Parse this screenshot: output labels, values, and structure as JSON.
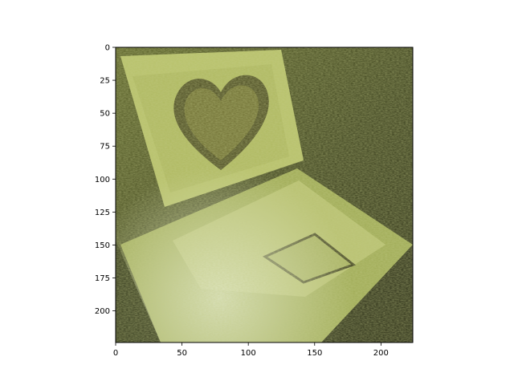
{
  "chart_data": {
    "type": "heatmap",
    "image_content": "stylized textured rendering of an open laptop whose screen shows a heart shape; knitted/woolly texture in olive-green and yellow-green tones",
    "image_size": [
      224,
      224
    ],
    "x_range": [
      0,
      224
    ],
    "y_range": [
      224,
      0
    ],
    "y_inverted": true,
    "x_ticks": [
      0,
      50,
      100,
      150,
      200
    ],
    "y_ticks": [
      0,
      25,
      50,
      75,
      100,
      125,
      150,
      175,
      200
    ],
    "x_tick_labels": [
      "0",
      "50",
      "100",
      "150",
      "200"
    ],
    "y_tick_labels": [
      "0",
      "25",
      "50",
      "75",
      "100",
      "125",
      "150",
      "175",
      "200"
    ],
    "title": "",
    "xlabel": "",
    "ylabel": "",
    "grid": false,
    "colors": {
      "background_dark": "#2b2f18",
      "olive": "#6f7a3a",
      "yellow_green": "#c8cf7a",
      "pale": "#dfe6c0",
      "heart_dark": "#3a3a1c",
      "axis": "#000000"
    }
  }
}
